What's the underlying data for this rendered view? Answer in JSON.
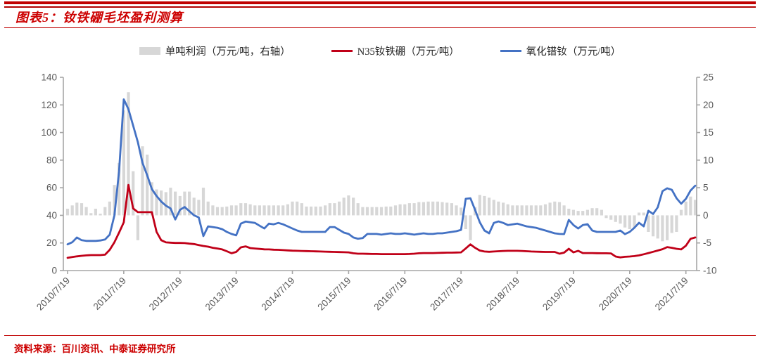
{
  "page": {
    "title": "图表5：钕铁硼毛坯盈利测算",
    "source": "资料来源：百川资讯、中泰证券研究所"
  },
  "colors": {
    "accent_red": "#c00000",
    "line_red": "#c00018",
    "line_blue": "#4472c4",
    "bar_gray": "#d7d7d7",
    "axis_line": "#a6a6a6",
    "axis_text": "#595959"
  },
  "chart_data": {
    "type": "combo bar+line, weekly series shown at monthly resolution",
    "title": "钕铁硼毛坯盈利测算",
    "x_monthly_start": "2010/07",
    "x_monthly_end": "2021/09",
    "x_tick_every": 12,
    "x_tick_labels": [
      "2010/7/19",
      "2011/7/19",
      "2012/7/19",
      "2013/7/19",
      "2014/7/19",
      "2015/7/19",
      "2016/7/19",
      "2017/7/19",
      "2018/7/19",
      "2019/7/19",
      "2020/7/19",
      "2021/7/19"
    ],
    "left_axis": {
      "min": 0,
      "max": 140,
      "step": 20
    },
    "right_axis": {
      "min": -10,
      "max": 25,
      "step": 5
    },
    "grid": false,
    "legend_position": "top",
    "legend": [
      {
        "label": "单吨利润（万元/吨，右轴）",
        "type": "bar",
        "color": "#d7d7d7"
      },
      {
        "label": "N35钕铁硼（万元/吨）",
        "type": "line",
        "color": "#c00018"
      },
      {
        "label": "氧化镨钕（万元/吨）",
        "type": "line",
        "color": "#4472c4"
      }
    ],
    "series": [
      {
        "name": "单吨利润",
        "axis": "right",
        "type": "bar",
        "color": "#d7d7d7",
        "values": [
          1.2,
          1.8,
          2.3,
          2.2,
          1.5,
          0.4,
          1.2,
          0.3,
          1.5,
          2.5,
          5.5,
          9.5,
          19,
          22.3,
          8,
          -4.5,
          12.5,
          11,
          6,
          4.7,
          4.5,
          4.2,
          5,
          4.3,
          3.5,
          4.3,
          4.3,
          3.2,
          2.8,
          5,
          2.5,
          1.8,
          1.5,
          1.5,
          1.6,
          1.8,
          1.8,
          2.2,
          2.2,
          2,
          1.8,
          1.8,
          1.8,
          1.8,
          1.8,
          1.8,
          1.8,
          2,
          2.5,
          2.5,
          2.2,
          1.6,
          1.6,
          1.6,
          1.6,
          1.8,
          2.2,
          2.2,
          2.5,
          3.2,
          3.6,
          3.2,
          2.2,
          1.5,
          1.5,
          1.5,
          1.5,
          1.5,
          1.6,
          1.6,
          1.8,
          2,
          2,
          2.2,
          2.2,
          2.4,
          2.4,
          2.5,
          2.5,
          2.5,
          2.4,
          2.3,
          2.2,
          1.8,
          1.4,
          -2.5,
          -4.5,
          1.5,
          3.7,
          3.5,
          3.2,
          2.8,
          2.5,
          2.3,
          2,
          1.8,
          1.8,
          1.8,
          1.8,
          1.8,
          1.8,
          1.8,
          2,
          2.3,
          2.5,
          2.4,
          1.8,
          1.2,
          1,
          0.8,
          0.8,
          1,
          1.3,
          1.3,
          1,
          -0.5,
          -0.8,
          -1.2,
          -1.5,
          -2.2,
          -2.5,
          -2.2,
          0.5,
          0.5,
          -3,
          -3.8,
          -4.2,
          -4.7,
          -4.5,
          -3.2,
          -3,
          1,
          2.5,
          3.4,
          2.8
        ]
      },
      {
        "name": "N35钕铁硼",
        "axis": "left",
        "type": "line",
        "color": "#c00018",
        "values": [
          9.2,
          9.8,
          10.3,
          10.7,
          11,
          11.2,
          11.2,
          11.2,
          11.5,
          15,
          20.5,
          27.5,
          35,
          62,
          45,
          42.3,
          42.3,
          42.3,
          42.3,
          28,
          22,
          20.4,
          20.2,
          20,
          20,
          19.9,
          19.5,
          19.2,
          18.5,
          17.8,
          17.3,
          16.5,
          16,
          15.3,
          14,
          12.5,
          13.5,
          16.8,
          17.5,
          16.3,
          16,
          15.7,
          15.4,
          15.3,
          15.1,
          15,
          14.8,
          14.6,
          14.4,
          14.3,
          14.2,
          14.1,
          14,
          13.9,
          13.8,
          13.7,
          13.6,
          13.5,
          13.4,
          13.3,
          13.2,
          12.5,
          12.2,
          12.2,
          12.1,
          12,
          12,
          11.9,
          11.9,
          11.9,
          11.9,
          11.9,
          11.9,
          12,
          12.2,
          12.5,
          12.7,
          12.7,
          12.7,
          12.8,
          12.9,
          13,
          13,
          13.1,
          13.2,
          16,
          19,
          16.5,
          14.5,
          13.8,
          13.6,
          13.8,
          14,
          14.2,
          14.3,
          14.3,
          14.3,
          14.2,
          14,
          13.8,
          13.7,
          13.6,
          13.5,
          13.5,
          13.5,
          12.2,
          13,
          15.8,
          13.2,
          14.3,
          12.7,
          12.7,
          12.7,
          12.6,
          12.5,
          12.5,
          12.4,
          10.2,
          9.5,
          10,
          10.2,
          10.5,
          11,
          11.8,
          12.7,
          13.6,
          14.5,
          15.5,
          17,
          16.5,
          15.8,
          15.3,
          18,
          23,
          24
        ]
      },
      {
        "name": "氧化镨钕",
        "axis": "left",
        "type": "line",
        "color": "#4472c4",
        "values": [
          19,
          20.5,
          24,
          22,
          21.5,
          21.5,
          21.5,
          21.8,
          22.5,
          26,
          40,
          72,
          124,
          117,
          105,
          93,
          78,
          69,
          59,
          54,
          50,
          47,
          45,
          37,
          44,
          46,
          43,
          40,
          38.5,
          25,
          32,
          31.5,
          31,
          30,
          28,
          26.5,
          25.5,
          34,
          35.5,
          35,
          34.5,
          32.5,
          30.5,
          34,
          33.5,
          34.5,
          33.5,
          32,
          30.5,
          29,
          28,
          28,
          28,
          28,
          28,
          28,
          31.5,
          31.5,
          29.5,
          27.5,
          26.5,
          24,
          23,
          23.5,
          26.5,
          26.5,
          26.5,
          26,
          26.5,
          27,
          26.5,
          26.5,
          27,
          26.5,
          26,
          26.5,
          27,
          26.5,
          26.5,
          27,
          27,
          27.5,
          28,
          28.5,
          29.5,
          52,
          52.4,
          44,
          35,
          29,
          27,
          34.5,
          35.6,
          34.5,
          33,
          33.5,
          34,
          33,
          32,
          31.5,
          31,
          30,
          29,
          28,
          27,
          26.5,
          26.4,
          36.7,
          33,
          30.5,
          33,
          33.6,
          29,
          28,
          28,
          28,
          28,
          28,
          29,
          26.4,
          28,
          31,
          34.6,
          32,
          43.3,
          41,
          45.8,
          57.5,
          59.6,
          58.5,
          52.4,
          48.4,
          52,
          58,
          61.5
        ]
      }
    ]
  }
}
